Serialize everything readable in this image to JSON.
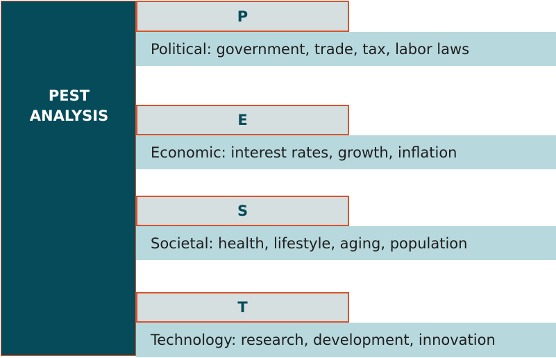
{
  "title_lines": [
    "PEST",
    "ANALYSIS"
  ],
  "factors": [
    {
      "letter": "P",
      "description": "Political: government, trade, tax, labor laws"
    },
    {
      "letter": "E",
      "description": "Economic: interest rates, growth, inflation"
    },
    {
      "letter": "S",
      "description": "Societal: health, lifestyle, aging, population"
    },
    {
      "letter": "T",
      "description": "Technology: research, development, innovation"
    }
  ],
  "colors": {
    "main_fill": "#064b59",
    "accent_border": "#d9532b",
    "letter_fill": "#d5dfe0",
    "description_fill": "#b7d8dd"
  }
}
